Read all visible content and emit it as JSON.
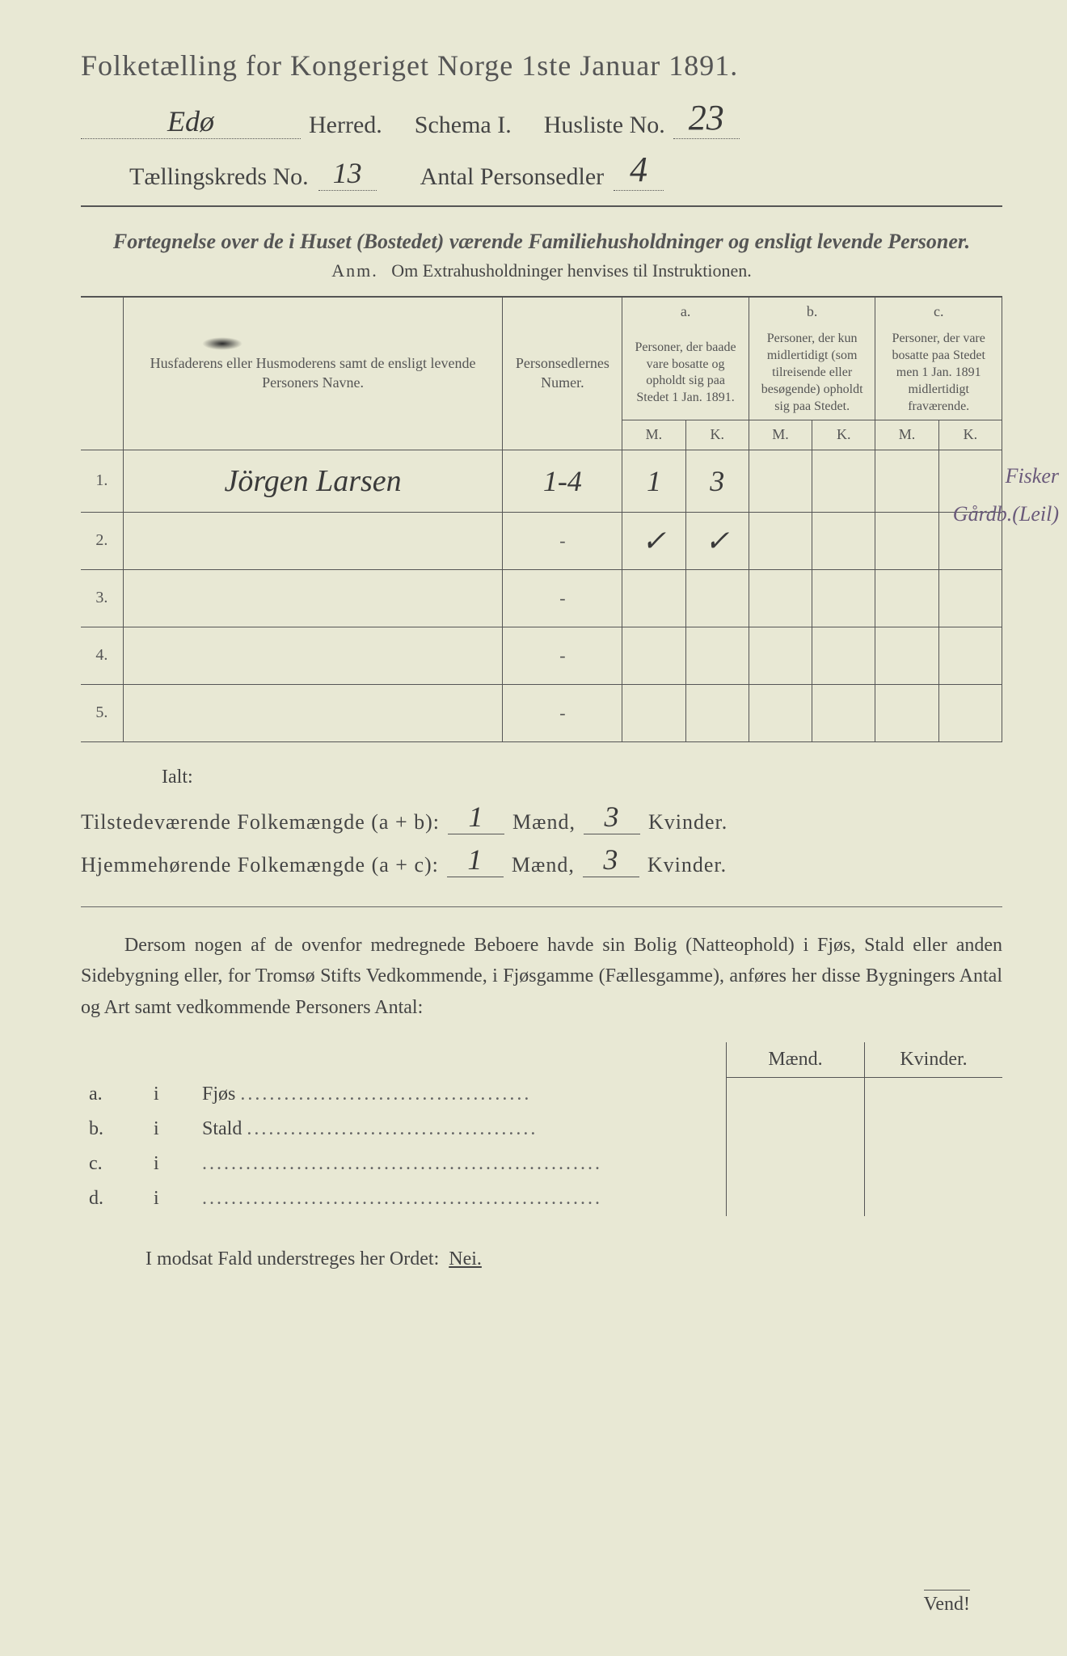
{
  "header": {
    "title": "Folketælling for Kongeriget Norge 1ste Januar 1891.",
    "herred_value": "Edø",
    "herred_label": "Herred.",
    "schema_label": "Schema I.",
    "husliste_label": "Husliste No.",
    "husliste_value": "23",
    "kreds_label": "Tællingskreds No.",
    "kreds_value": "13",
    "antal_label": "Antal Personsedler",
    "antal_value": "4"
  },
  "subtitle": "Fortegnelse over de i Huset (Bostedet) værende Familiehusholdninger og ensligt levende Personer.",
  "anm": {
    "label": "Anm.",
    "text": "Om Extrahusholdninger henvises til Instruktionen."
  },
  "table": {
    "head": {
      "col1": "Husfaderens eller Husmoderens samt de ensligt levende Personers Navne.",
      "col2": "Personsedlernes Numer.",
      "a_top": "a.",
      "a": "Personer, der baade vare bosatte og opholdt sig paa Stedet 1 Jan. 1891.",
      "b_top": "b.",
      "b": "Personer, der kun midlertidigt (som tilreisende eller besøgende) opholdt sig paa Stedet.",
      "c_top": "c.",
      "c": "Personer, der vare bosatte paa Stedet men 1 Jan. 1891 midlertidigt fraværende.",
      "m": "M.",
      "k": "K."
    },
    "rows": [
      {
        "n": "1.",
        "name": "Jörgen Larsen",
        "num": "1-4",
        "am": "1",
        "ak": "3",
        "bm": "",
        "bk": "",
        "cm": "",
        "ck": ""
      },
      {
        "n": "2.",
        "name": "",
        "num": "-",
        "am": "✓",
        "ak": "✓",
        "bm": "",
        "bk": "",
        "cm": "",
        "ck": ""
      },
      {
        "n": "3.",
        "name": "",
        "num": "-",
        "am": "",
        "ak": "",
        "bm": "",
        "bk": "",
        "cm": "",
        "ck": ""
      },
      {
        "n": "4.",
        "name": "",
        "num": "-",
        "am": "",
        "ak": "",
        "bm": "",
        "bk": "",
        "cm": "",
        "ck": ""
      },
      {
        "n": "5.",
        "name": "",
        "num": "-",
        "am": "",
        "ak": "",
        "bm": "",
        "bk": "",
        "cm": "",
        "ck": ""
      }
    ],
    "side_notes": [
      "Fisker",
      "Gårdb.(Leil)"
    ]
  },
  "ialt": "Ialt:",
  "totals": {
    "line1_label": "Tilstedeværende Folkemængde (a + b):",
    "line2_label": "Hjemmehørende Folkemængde (a + c):",
    "maend": "Mænd,",
    "kvinder": "Kvinder.",
    "ab_m": "1",
    "ab_k": "3",
    "ac_m": "1",
    "ac_k": "3"
  },
  "dersom": "Dersom nogen af de ovenfor medregnede Beboere havde sin Bolig (Natteophold) i Fjøs, Stald eller anden Sidebygning eller, for Tromsø Stifts Vedkommende, i Fjøsgamme (Fællesgamme), anføres her disse Bygningers Antal og Art samt vedkommende Personers Antal:",
  "bygn": {
    "head_m": "Mænd.",
    "head_k": "Kvinder.",
    "rows": [
      {
        "l": "a.",
        "i": "i",
        "t": "Fjøs"
      },
      {
        "l": "b.",
        "i": "i",
        "t": "Stald"
      },
      {
        "l": "c.",
        "i": "i",
        "t": ""
      },
      {
        "l": "d.",
        "i": "i",
        "t": ""
      }
    ]
  },
  "modsat": {
    "text": "I modsat Fald understreges her Ordet:",
    "nei": "Nei."
  },
  "vend": "Vend!"
}
